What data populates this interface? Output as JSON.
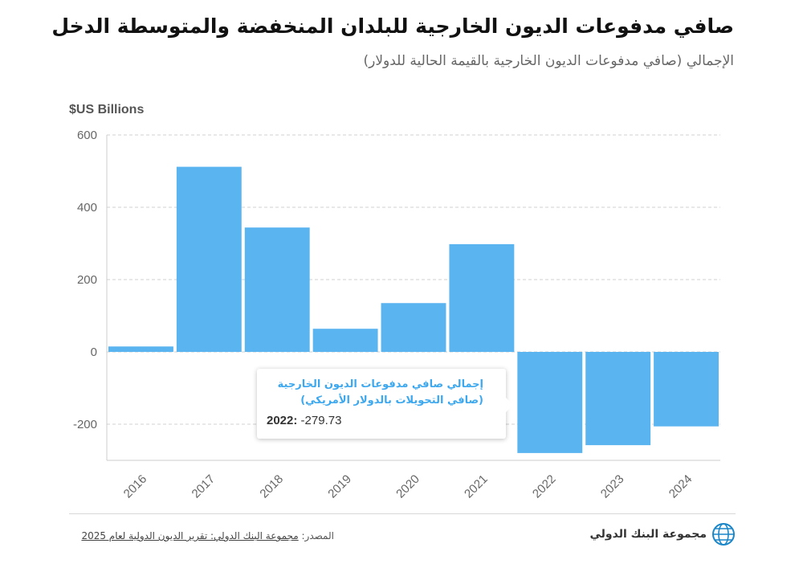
{
  "header": {
    "title": "صافي مدفوعات الديون الخارجية للبلدان المنخفضة والمتوسطة الدخل",
    "subtitle": "الإجمالي (صافي مدفوعات الديون الخارجية بالقيمة الحالية للدولار)"
  },
  "chart_data": {
    "type": "bar",
    "unit_label": "$US Billions",
    "categories": [
      "2016",
      "2017",
      "2018",
      "2019",
      "2020",
      "2021",
      "2022",
      "2023",
      "2024"
    ],
    "values": [
      15,
      512,
      344,
      64,
      135,
      298,
      -279.73,
      -258,
      -206
    ],
    "ylim": [
      -300,
      600
    ],
    "yticks": [
      600,
      400,
      200,
      0,
      -200
    ],
    "grid": true,
    "bar_color": "#5ab4f0",
    "series": [
      {
        "name": "إجمالي صافي مدفوعات الديون الخارجية (صافي التحويلات بالدولار الأمريكي)"
      }
    ]
  },
  "tooltip": {
    "series": "إجمالي صافي مدفوعات الديون الخارجية (صافي التحويلات بالدولار الأمريكي)",
    "year_label": "2022:",
    "value": "-279.73"
  },
  "footer": {
    "source_label": "المصدر:",
    "source_link": "مجموعة البنك الدولي: تقرير الديون الدولية لعام 2025",
    "logo_text": "مجموعة البنك الدولي"
  },
  "colors": {
    "accent": "#5ab4f0",
    "tooltip_text": "#3da8ee"
  }
}
